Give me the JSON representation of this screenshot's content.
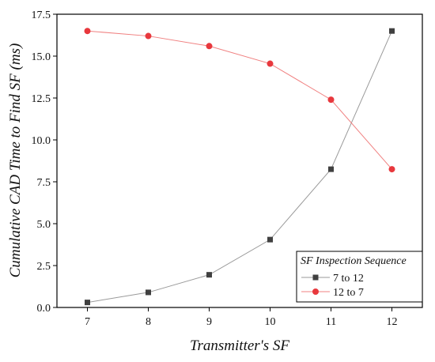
{
  "chart_data": {
    "type": "line",
    "title": "",
    "xlabel": "Transmitter's SF",
    "ylabel": "Cumulative CAD Time to Find SF (ms)",
    "x": [
      7,
      8,
      9,
      10,
      11,
      12
    ],
    "x_ticks": [
      "7",
      "8",
      "9",
      "10",
      "11",
      "12"
    ],
    "xlim": [
      6.5,
      12.5
    ],
    "ylim": [
      0,
      17.5
    ],
    "y_ticks": [
      "0.0",
      "2.5",
      "5.0",
      "7.5",
      "10.0",
      "12.5",
      "15.0",
      "17.5"
    ],
    "y_tick_values": [
      0,
      2.5,
      5,
      7.5,
      10,
      12.5,
      15,
      17.5
    ],
    "grid": false,
    "legend": {
      "title": "SF Inspection Sequence",
      "placement": "bottom-right"
    },
    "series": [
      {
        "name": "7 to 12",
        "marker": "square",
        "color": "#404040",
        "line_color": "#9a9a9a",
        "values": [
          0.3,
          0.9,
          1.95,
          4.05,
          8.25,
          16.5
        ]
      },
      {
        "name": "12 to 7",
        "marker": "circle",
        "color": "#e8383d",
        "line_color": "#f08080",
        "values": [
          16.5,
          16.2,
          15.6,
          14.55,
          12.4,
          8.25
        ]
      }
    ]
  }
}
